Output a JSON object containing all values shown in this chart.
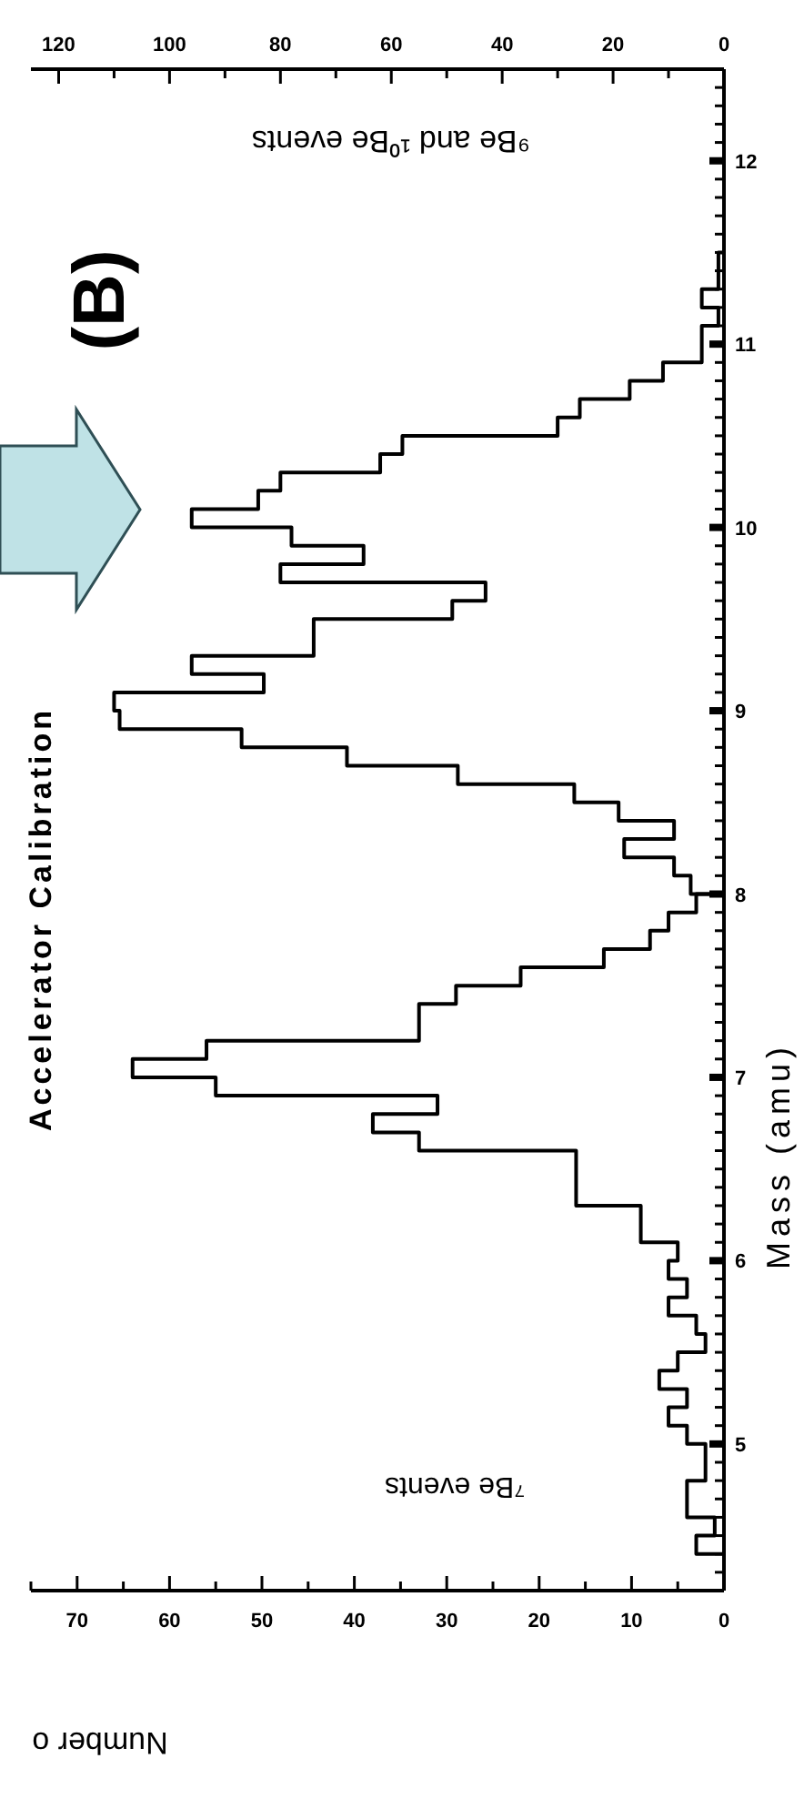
{
  "chart_data": [
    {
      "type": "histogram",
      "orientation": "horizontal",
      "title": "Accelerator Calibration",
      "ylabel": "Mass (amu)",
      "xlabel": "Number o",
      "annotations": [
        "⁷Be events"
      ],
      "bins": [
        4.4,
        4.5,
        4.6,
        4.7,
        4.8,
        4.9,
        5.0,
        5.1,
        5.2,
        5.3,
        5.4,
        5.5,
        5.6,
        5.7,
        5.8,
        5.9,
        6.0,
        6.1,
        6.2,
        6.3,
        6.4,
        6.5,
        6.6,
        6.7,
        6.8,
        6.9,
        7.0,
        7.1,
        7.2,
        7.3,
        7.4,
        7.5,
        7.6,
        7.7,
        7.8,
        7.9,
        8.0
      ],
      "series": [
        {
          "color": "#000000",
          "values": [
            3,
            1,
            4,
            4,
            2,
            2,
            4,
            6,
            4,
            7,
            5,
            2,
            3,
            6,
            4,
            6,
            5,
            9,
            9,
            16,
            16,
            16,
            33,
            38,
            31,
            55,
            64,
            56,
            33,
            33,
            29,
            22,
            13,
            8,
            6,
            3
          ]
        }
      ],
      "ylim": [
        4.2,
        12.5
      ],
      "yticks": [
        {
          "value": 4.3,
          "label": null
        },
        {
          "value": 4.4,
          "label": null
        },
        {
          "value": 4.5,
          "label": null
        },
        {
          "value": 4.6,
          "label": null
        },
        {
          "value": 4.7,
          "label": null
        },
        {
          "value": 4.8,
          "label": null
        },
        {
          "value": 4.9,
          "label": null
        },
        5,
        {
          "value": 5.1,
          "label": null
        },
        {
          "value": 5.2,
          "label": null
        },
        {
          "value": 5.3,
          "label": null
        },
        {
          "value": 5.4,
          "label": null
        },
        {
          "value": 5.5,
          "label": null
        },
        {
          "value": 5.6,
          "label": null
        },
        {
          "value": 5.7,
          "label": null
        },
        {
          "value": 5.8,
          "label": null
        },
        {
          "value": 5.9,
          "label": null
        },
        6,
        {
          "value": 6.1,
          "label": null
        },
        {
          "value": 6.2,
          "label": null
        },
        {
          "value": 6.3,
          "label": null
        },
        {
          "value": 6.4,
          "label": null
        },
        {
          "value": 6.5,
          "label": null
        },
        {
          "value": 6.6,
          "label": null
        },
        {
          "value": 6.7,
          "label": null
        },
        {
          "value": 6.8,
          "label": null
        },
        {
          "value": 6.9,
          "label": null
        },
        7,
        {
          "value": 7.1,
          "label": null
        },
        {
          "value": 7.2,
          "label": null
        },
        {
          "value": 7.3,
          "label": null
        },
        {
          "value": 7.4,
          "label": null
        },
        {
          "value": 7.5,
          "label": null
        },
        {
          "value": 7.6,
          "label": null
        },
        {
          "value": 7.7,
          "label": null
        },
        {
          "value": 7.8,
          "label": null
        },
        {
          "value": 7.9,
          "label": null
        },
        8,
        {
          "value": 8.1,
          "label": null
        },
        {
          "value": 8.2,
          "label": null
        },
        {
          "value": 8.3,
          "label": null
        },
        {
          "value": 8.4,
          "label": null
        },
        {
          "value": 8.5,
          "label": null
        },
        {
          "value": 8.6,
          "label": null
        },
        {
          "value": 8.7,
          "label": null
        },
        {
          "value": 8.8,
          "label": null
        },
        {
          "value": 8.9,
          "label": null
        },
        9,
        {
          "value": 9.1,
          "label": null
        },
        {
          "value": 9.2,
          "label": null
        },
        {
          "value": 9.3,
          "label": null
        },
        {
          "value": 9.4,
          "label": null
        },
        {
          "value": 9.5,
          "label": null
        },
        {
          "value": 9.6,
          "label": null
        },
        {
          "value": 9.7,
          "label": null
        },
        {
          "value": 9.8,
          "label": null
        },
        {
          "value": 9.9,
          "label": null
        },
        10,
        {
          "value": 10.1,
          "label": null
        },
        {
          "value": 10.2,
          "label": null
        },
        {
          "value": 10.3,
          "label": null
        },
        {
          "value": 10.4,
          "label": null
        },
        {
          "value": 10.5,
          "label": null
        },
        {
          "value": 10.6,
          "label": null
        },
        {
          "value": 10.7,
          "label": null
        },
        {
          "value": 10.8,
          "label": null
        },
        {
          "value": 10.9,
          "label": null
        },
        11,
        {
          "value": 11.1,
          "label": null
        },
        {
          "value": 11.2,
          "label": null
        },
        {
          "value": 11.3,
          "label": null
        },
        {
          "value": 11.4,
          "label": null
        },
        {
          "value": 11.5,
          "label": null
        },
        {
          "value": 11.6,
          "label": null
        },
        {
          "value": 11.7,
          "label": null
        },
        {
          "value": 11.8,
          "label": null
        },
        {
          "value": 11.9,
          "label": null
        },
        12,
        {
          "value": 12.1,
          "label": null
        },
        {
          "value": 12.2,
          "label": null
        },
        {
          "value": 12.3,
          "label": null
        },
        {
          "value": 12.4,
          "label": null
        }
      ],
      "xlim": [
        75,
        0
      ],
      "xticks": [
        0,
        {
          "value": 5,
          "label": null
        },
        10,
        {
          "value": 15,
          "label": null
        },
        20,
        {
          "value": 25,
          "label": null
        },
        30,
        {
          "value": 35,
          "label": null
        },
        40,
        {
          "value": 45,
          "label": null
        },
        50,
        {
          "value": 55,
          "label": null
        },
        60,
        {
          "value": 65,
          "label": null
        },
        70,
        {
          "value": 75,
          "label": null
        }
      ]
    },
    {
      "type": "histogram",
      "orientation": "horizontal",
      "xlabel": "⁹Be and ¹⁰Be events",
      "annotations": [
        "(B)"
      ],
      "tick_labels": "x",
      "bins": [
        8.0,
        8.1,
        8.2,
        8.3,
        8.4,
        8.5,
        8.6,
        8.7,
        8.8,
        8.9,
        9.0,
        9.1,
        9.2,
        9.3,
        9.4,
        9.5,
        9.6,
        9.7,
        9.8,
        9.9,
        10.0,
        10.1,
        10.2,
        10.3,
        10.4,
        10.5,
        10.6,
        10.7,
        10.8,
        10.9,
        11.0,
        11.1,
        11.2,
        11.3,
        11.4,
        11.5
      ],
      "series": [
        {
          "color": "#000000",
          "values": [
            6,
            9,
            18,
            9,
            19,
            27,
            48,
            68,
            87,
            109,
            110,
            83,
            96,
            74,
            74,
            49,
            43,
            80,
            65,
            78,
            96,
            84,
            80,
            62,
            58,
            30,
            26,
            17,
            11,
            4,
            4,
            1,
            4,
            1,
            1
          ]
        }
      ],
      "ylim": [
        4.2,
        12.5
      ],
      "xlim": [
        125,
        0
      ],
      "xticks": [
        0,
        {
          "value": 10,
          "label": null
        },
        20,
        {
          "value": 30,
          "label": null
        },
        40,
        {
          "value": 50,
          "label": null
        },
        60,
        {
          "value": 70,
          "label": null
        },
        80,
        {
          "value": 90,
          "label": null
        },
        100,
        {
          "value": 110,
          "label": null
        },
        120
      ]
    }
  ]
}
